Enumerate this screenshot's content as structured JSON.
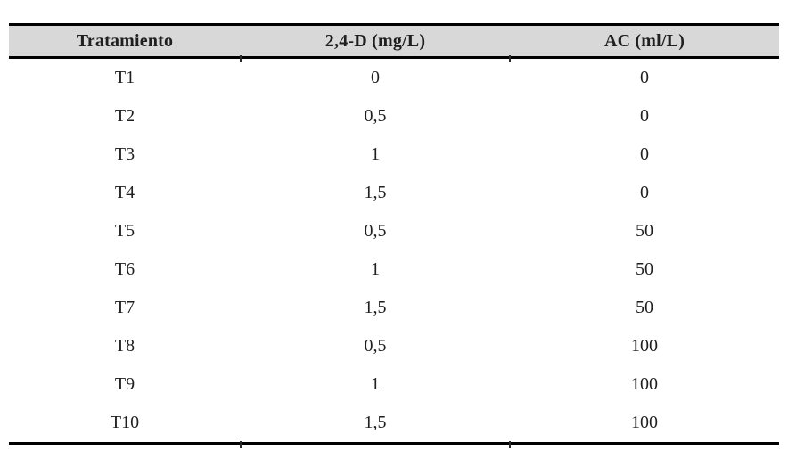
{
  "table": {
    "columns": [
      "Tratamiento",
      "2,4-D (mg/L)",
      "AC (ml/L)"
    ],
    "rows": [
      [
        "T1",
        "0",
        "0"
      ],
      [
        "T2",
        "0,5",
        "0"
      ],
      [
        "T3",
        "1",
        "0"
      ],
      [
        "T4",
        "1,5",
        "0"
      ],
      [
        "T5",
        "0,5",
        "50"
      ],
      [
        "T6",
        "1",
        "50"
      ],
      [
        "T7",
        "1,5",
        "50"
      ],
      [
        "T8",
        "0,5",
        "100"
      ],
      [
        "T9",
        "1",
        "100"
      ],
      [
        "T10",
        "1,5",
        "100"
      ]
    ]
  },
  "colors": {
    "header_bg": "#d8d8d8",
    "rule": "#000000",
    "text": "#1f1f1f",
    "page_bg": "#ffffff"
  }
}
